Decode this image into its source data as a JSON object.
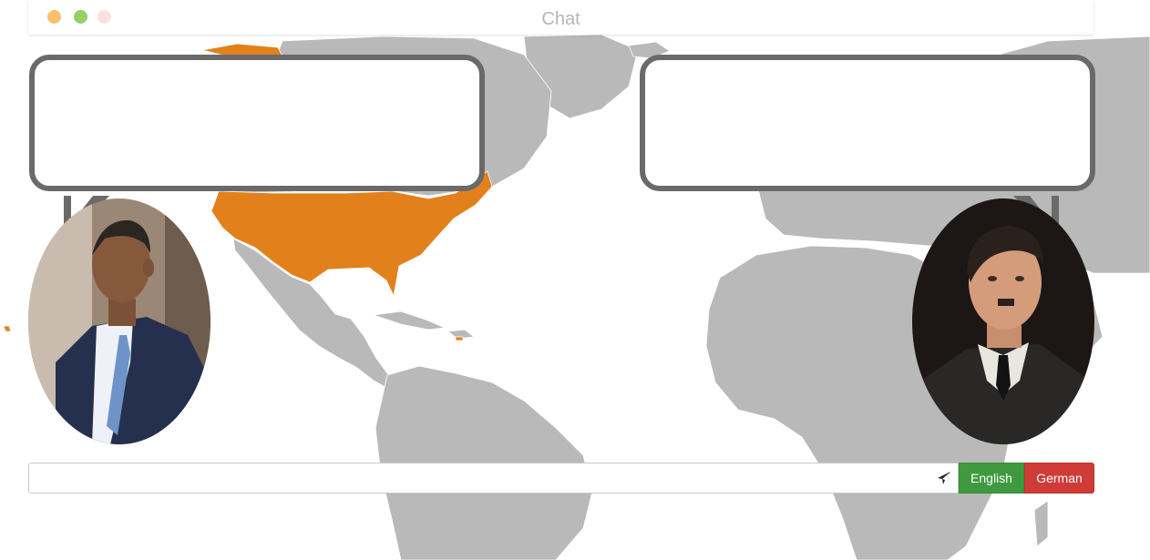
{
  "window": {
    "title": "Chat",
    "traffic_lights": [
      "#fbbf6c",
      "#97cf68",
      "#fbe0e0"
    ]
  },
  "map": {
    "land_color": "#b9b9b9",
    "highlight_color": "#e2811c",
    "highlighted_region": "United States"
  },
  "chat": {
    "left_bubble_text": "",
    "right_bubble_text": "",
    "left_avatar": "barack-obama-portrait",
    "right_avatar": "adolf-hitler-portrait"
  },
  "composer": {
    "message_value": "",
    "message_placeholder": "",
    "send_icon": "paper-plane-icon"
  },
  "languages": {
    "english_label": "English",
    "german_label": "German",
    "english_color": "#3f9a3f",
    "german_color": "#cf3b36"
  }
}
